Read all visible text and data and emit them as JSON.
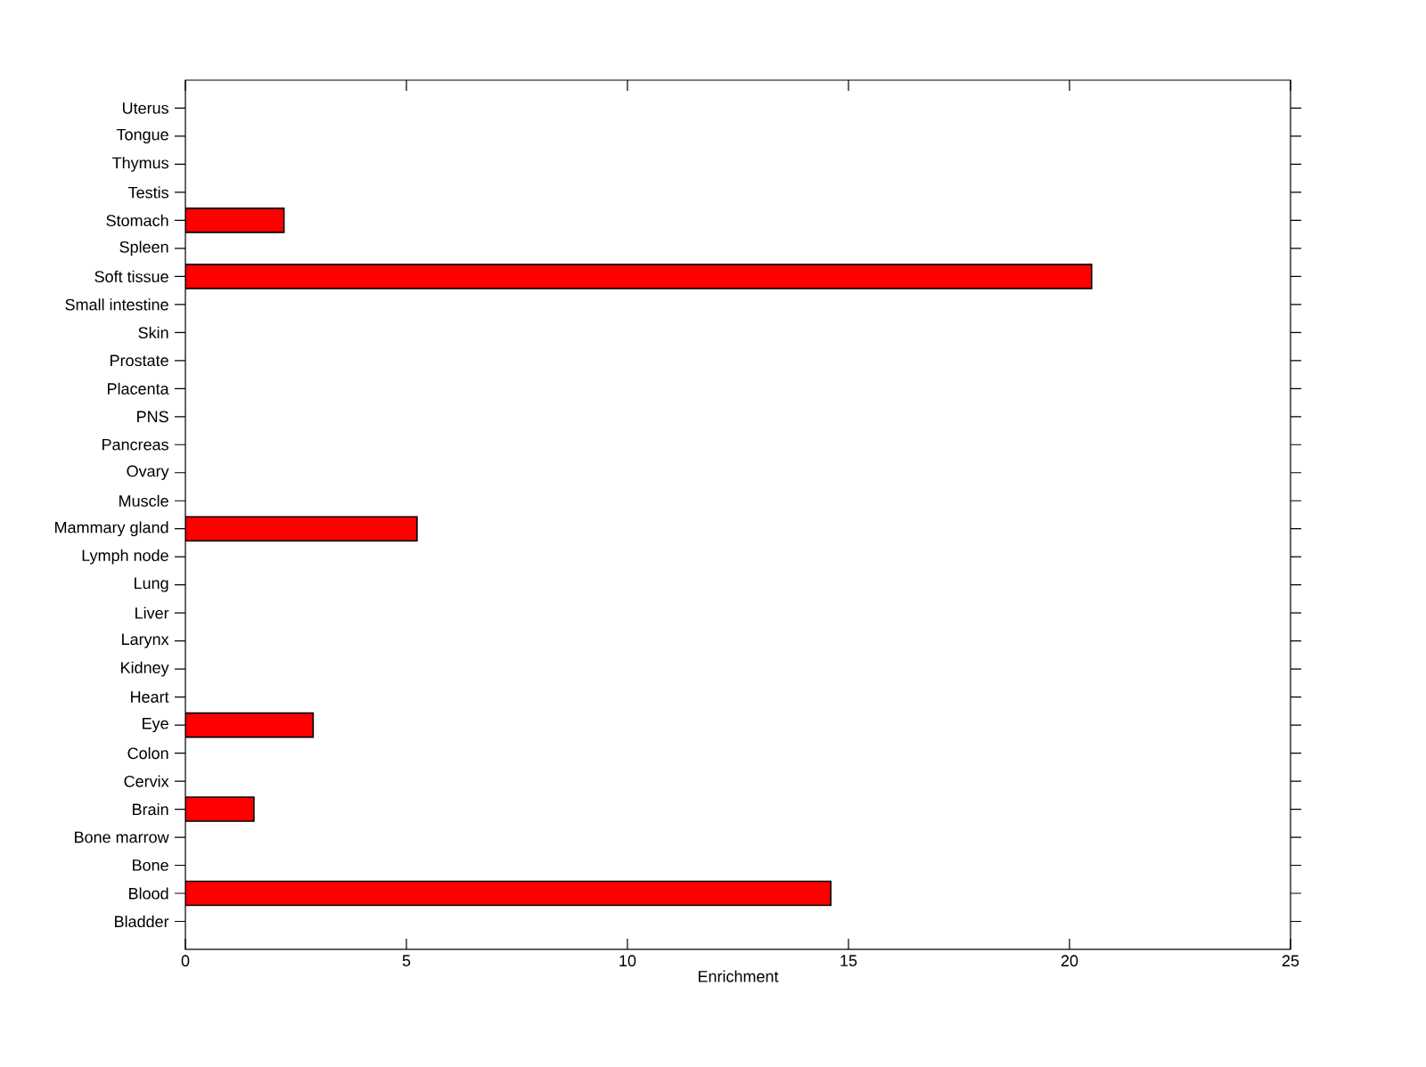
{
  "chart_data": {
    "type": "bar",
    "orientation": "horizontal",
    "categories": [
      "Uterus",
      "Tongue",
      "Thymus",
      "Testis",
      "Stomach",
      "Spleen",
      "Soft tissue",
      "Small intestine",
      "Skin",
      "Prostate",
      "Placenta",
      "PNS",
      "Pancreas",
      "Ovary",
      "Muscle",
      "Mammary gland",
      "Lymph node",
      "Lung",
      "Liver",
      "Larynx",
      "Kidney",
      "Heart",
      "Eye",
      "Colon",
      "Cervix",
      "Brain",
      "Bone marrow",
      "Bone",
      "Blood",
      "Bladder"
    ],
    "values": [
      0,
      0,
      0,
      0,
      2.23,
      0,
      20.5,
      0,
      0,
      0,
      0,
      0,
      0,
      0,
      0,
      5.24,
      0,
      0,
      0,
      0,
      0,
      0,
      2.89,
      0,
      0,
      1.55,
      0,
      0,
      14.6,
      0
    ],
    "color": "#ff0000",
    "xlabel": "Enrichment",
    "xlim": [
      0,
      25
    ],
    "xticks": [
      0,
      5,
      10,
      15,
      20,
      25
    ]
  }
}
